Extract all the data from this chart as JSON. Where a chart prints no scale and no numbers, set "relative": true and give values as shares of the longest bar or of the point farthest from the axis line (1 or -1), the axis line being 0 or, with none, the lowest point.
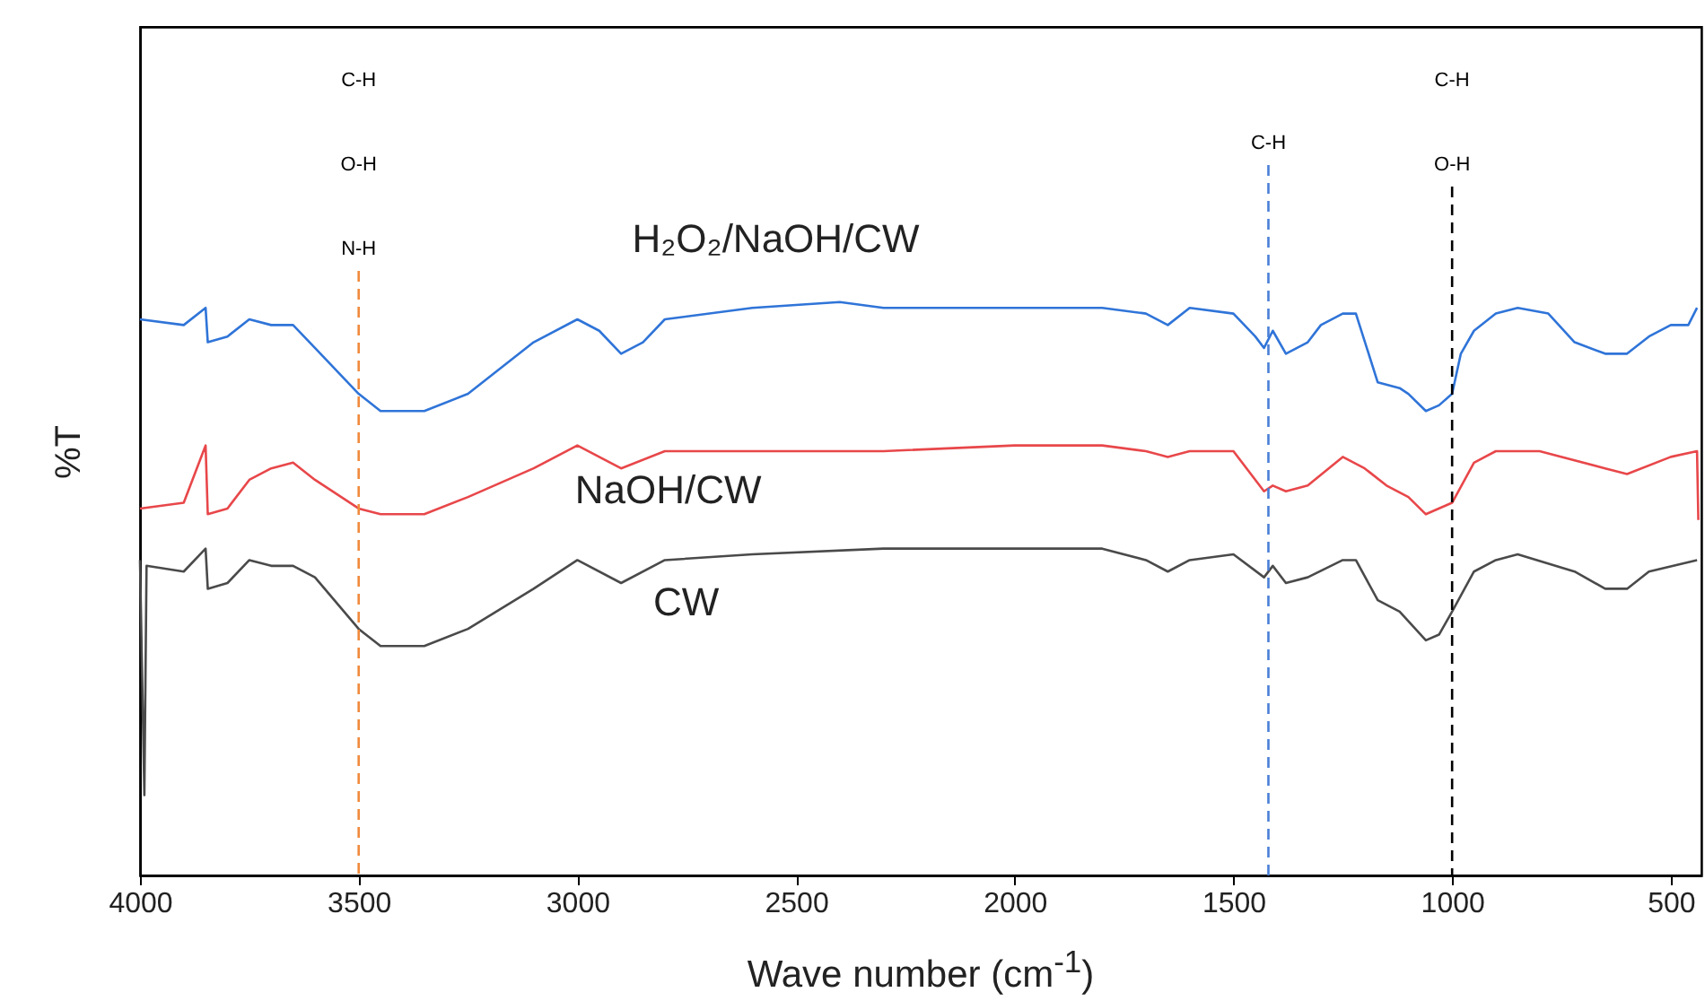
{
  "chart_data": {
    "type": "line",
    "xlabel": "Wave number (cm$^{-1}$)",
    "ylabel": "%T",
    "relative": true,
    "tick_labels": "x",
    "grid": false,
    "line_style": "solid",
    "marker": "none",
    "xlim": [
      4000,
      430
    ],
    "xticks": [
      4000,
      3500,
      3000,
      2500,
      2000,
      1500,
      1000,
      500
    ],
    "series": [
      {
        "name": "H₂O₂/NaOH/CW",
        "color": "#2f74d8",
        "x": [
          4000,
          3900,
          3850,
          3845,
          3800,
          3750,
          3700,
          3650,
          3600,
          3500,
          3450,
          3350,
          3250,
          3100,
          3000,
          2950,
          2900,
          2850,
          2800,
          2600,
          2400,
          2300,
          2000,
          1800,
          1700,
          1650,
          1600,
          1500,
          1450,
          1430,
          1410,
          1380,
          1330,
          1300,
          1250,
          1220,
          1170,
          1120,
          1100,
          1060,
          1030,
          1000,
          980,
          950,
          900,
          850,
          780,
          720,
          650,
          600,
          550,
          500,
          460,
          440
        ],
        "values": [
          0.97,
          0.96,
          0.99,
          0.93,
          0.94,
          0.97,
          0.96,
          0.96,
          0.92,
          0.84,
          0.81,
          0.81,
          0.84,
          0.93,
          0.97,
          0.95,
          0.91,
          0.93,
          0.97,
          0.99,
          1,
          0.99,
          0.99,
          0.99,
          0.98,
          0.96,
          0.99,
          0.98,
          0.94,
          0.92,
          0.95,
          0.91,
          0.93,
          0.96,
          0.98,
          0.98,
          0.86,
          0.85,
          0.84,
          0.81,
          0.82,
          0.84,
          0.91,
          0.95,
          0.98,
          0.99,
          0.98,
          0.93,
          0.91,
          0.91,
          0.94,
          0.96,
          0.96,
          0.99
        ]
      },
      {
        "name": "NaOH/CW",
        "color": "#e8474a",
        "x": [
          4000,
          3900,
          3850,
          3845,
          3800,
          3750,
          3700,
          3650,
          3600,
          3500,
          3450,
          3350,
          3250,
          3100,
          3000,
          2900,
          2800,
          2600,
          2300,
          2000,
          1800,
          1700,
          1650,
          1600,
          1500,
          1430,
          1410,
          1380,
          1330,
          1250,
          1200,
          1150,
          1100,
          1060,
          1000,
          950,
          900,
          800,
          650,
          600,
          500,
          440,
          437
        ],
        "values": [
          0.64,
          0.65,
          0.75,
          0.63,
          0.64,
          0.69,
          0.71,
          0.72,
          0.69,
          0.64,
          0.63,
          0.63,
          0.66,
          0.71,
          0.75,
          0.71,
          0.74,
          0.74,
          0.74,
          0.75,
          0.75,
          0.74,
          0.73,
          0.74,
          0.74,
          0.67,
          0.68,
          0.67,
          0.68,
          0.73,
          0.71,
          0.68,
          0.66,
          0.63,
          0.65,
          0.72,
          0.74,
          0.74,
          0.71,
          0.7,
          0.73,
          0.74,
          0.62
        ]
      },
      {
        "name": "CW",
        "color": "#4a4a4a",
        "x": [
          4000,
          3990,
          3985,
          3900,
          3850,
          3845,
          3800,
          3750,
          3700,
          3650,
          3600,
          3500,
          3450,
          3350,
          3250,
          3100,
          3000,
          2900,
          2800,
          2600,
          2300,
          2000,
          1800,
          1700,
          1650,
          1600,
          1500,
          1430,
          1410,
          1380,
          1330,
          1250,
          1220,
          1170,
          1120,
          1060,
          1030,
          1000,
          950,
          900,
          850,
          720,
          650,
          600,
          550,
          440
        ],
        "values": [
          0.55,
          0.14,
          0.54,
          0.53,
          0.57,
          0.5,
          0.51,
          0.55,
          0.54,
          0.54,
          0.52,
          0.43,
          0.4,
          0.4,
          0.43,
          0.5,
          0.55,
          0.51,
          0.55,
          0.56,
          0.57,
          0.57,
          0.57,
          0.55,
          0.53,
          0.55,
          0.56,
          0.52,
          0.54,
          0.51,
          0.52,
          0.55,
          0.55,
          0.48,
          0.46,
          0.41,
          0.42,
          0.46,
          0.53,
          0.55,
          0.56,
          0.53,
          0.5,
          0.5,
          0.53,
          0.55
        ]
      }
    ],
    "ref_lines": [
      {
        "axis": "x",
        "value": 3500,
        "color": "#f08a3c",
        "line_style": "dashed",
        "label": "C-H\nO-H\nN-H"
      },
      {
        "axis": "x",
        "value": 1420,
        "color": "#4a7fd8",
        "line_style": "dashed",
        "label": "C-H"
      },
      {
        "axis": "x",
        "value": 1000,
        "color": "#000000",
        "line_style": "dashed",
        "label": "C-H\nO-H"
      }
    ]
  }
}
